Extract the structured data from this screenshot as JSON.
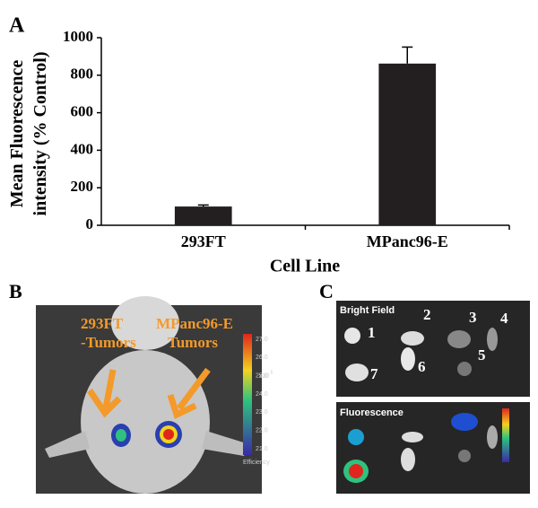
{
  "chart_data": {
    "type": "bar",
    "categories": [
      "293FT",
      "MPanc96-E"
    ],
    "values": [
      100,
      862
    ],
    "errors": [
      8,
      88
    ],
    "color": "#231f20",
    "ylim": [
      0,
      1000
    ],
    "yticks": [
      0,
      200,
      400,
      600,
      800,
      1000
    ],
    "x_label": "Cell Line",
    "y_label": "Mean Fluorescence intensity (% Control)"
  },
  "panels": {
    "a": "A",
    "b": "B",
    "c": "C"
  },
  "panel_b": {
    "left_label": [
      "293FT",
      "-Tumors"
    ],
    "right_label": [
      "MPanc96-E",
      "Tumors"
    ],
    "colorbar_ticks": [
      "27.0",
      "26.0",
      "25.0",
      "24.0",
      "23.0",
      "22.0",
      "21.0"
    ],
    "unit_base": "x10",
    "unit_exp": "-5",
    "colorbar_title": "Efficiency"
  },
  "panel_c": {
    "top_title": "Bright Field",
    "bottom_title": "Fluorescence",
    "numbers": [
      "1",
      "2",
      "3",
      "4",
      "5",
      "6",
      "7"
    ]
  }
}
